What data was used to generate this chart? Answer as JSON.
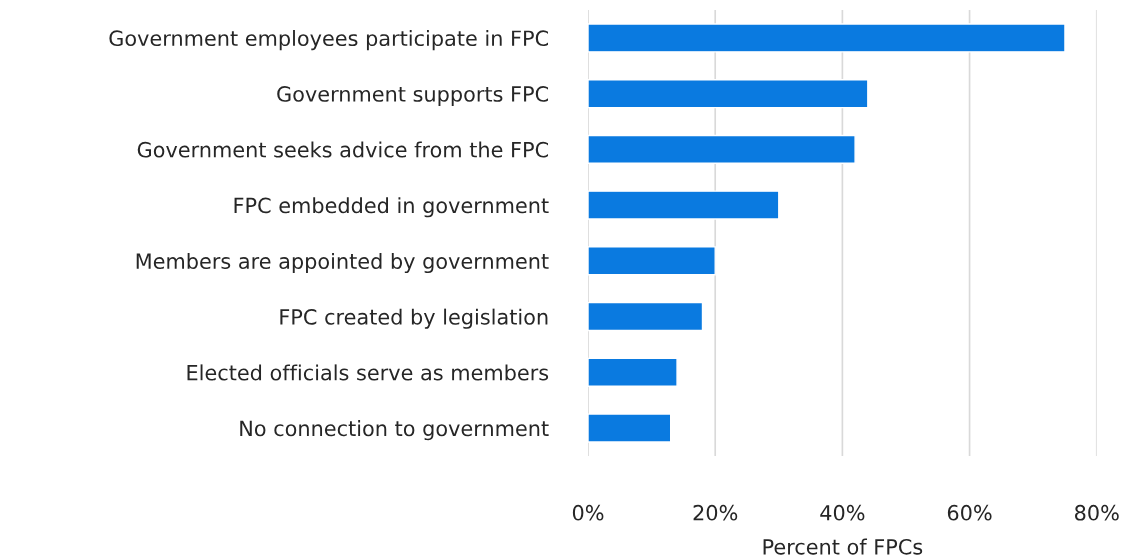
{
  "chart_data": {
    "type": "bar",
    "orientation": "horizontal",
    "categories": [
      "Government employees participate in FPC",
      "Government supports FPC",
      "Government seeks advice from the FPC",
      "FPC embedded in government",
      "Members are appointed by government",
      "FPC created by legislation",
      "Elected officials serve as members",
      "No connection to government"
    ],
    "values": [
      75,
      44,
      42,
      30,
      20,
      18,
      14,
      13
    ],
    "color": "#0a7ae0",
    "xlabel": "Percent of FPCs",
    "xlim": [
      0,
      80
    ],
    "xticks": [
      {
        "value": 0,
        "label": "0%"
      },
      {
        "value": 20,
        "label": "20%"
      },
      {
        "value": 40,
        "label": "40%"
      },
      {
        "value": 60,
        "label": "60%"
      },
      {
        "value": 80,
        "label": "80%"
      }
    ],
    "grid": "x"
  }
}
